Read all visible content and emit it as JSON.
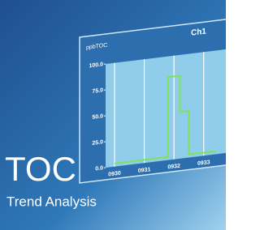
{
  "header": {
    "title": "TOC",
    "subtitle": "Trend Analysis"
  },
  "chart_data": {
    "type": "line",
    "title": "Ch1",
    "y_label": "ppbTOC",
    "x": [
      930,
      931.8,
      931.8,
      932.2,
      932.2,
      932.5,
      932.5,
      933.4
    ],
    "series": [
      {
        "name": "TOC",
        "color": "#7ee35a",
        "values": [
          3,
          3,
          80,
          80,
          45,
          45,
          3,
          3
        ]
      }
    ],
    "xlim": [
      929.7,
      933.8
    ],
    "xticks": [
      {
        "value": 930,
        "label": "0930"
      },
      {
        "value": 931,
        "label": "0931"
      },
      {
        "value": 932,
        "label": "0932"
      },
      {
        "value": 933,
        "label": "0933"
      }
    ],
    "ylim": [
      0,
      100
    ],
    "yticks": [
      {
        "value": 0,
        "label": "0.0"
      },
      {
        "value": 25,
        "label": "25.0"
      },
      {
        "value": 50,
        "label": "50.0"
      },
      {
        "value": 75,
        "label": "75.0"
      },
      {
        "value": 100,
        "label": "100.0"
      }
    ],
    "grid": true
  }
}
